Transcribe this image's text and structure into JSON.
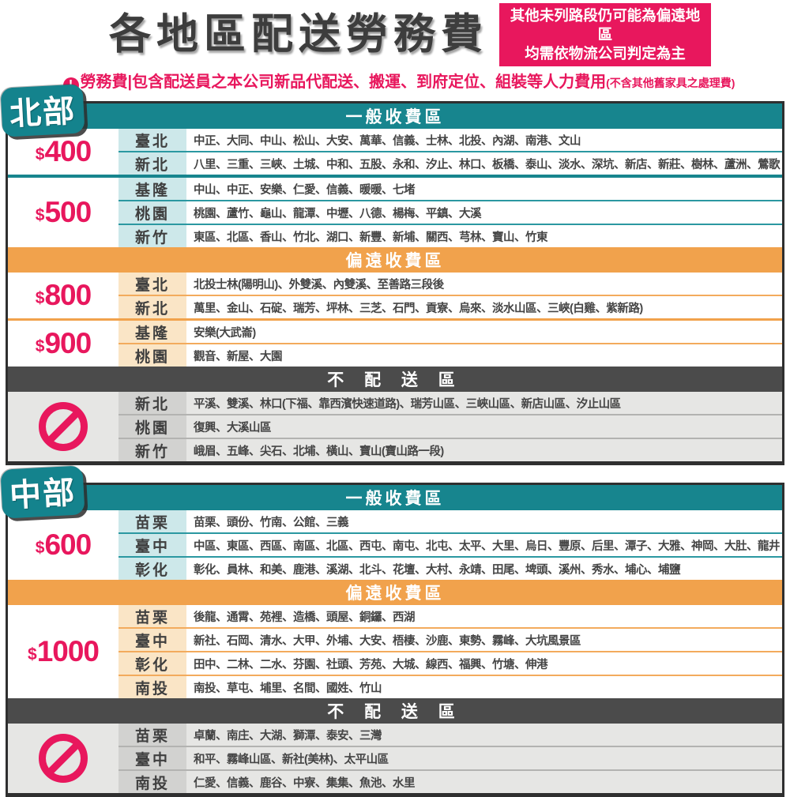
{
  "header": {
    "title": "各地區配送勞務費",
    "alert_symbol": "!",
    "notice": {
      "line1": "其他未列路段仍可能為偏遠地區",
      "line2": "均需依物流公司判定為主"
    },
    "disclaimer_main": "勞務費|包含配送員之本公司新品代配送、搬運、到府定位、組裝等人力費用",
    "disclaimer_note": "(不含其他舊家具之處理費)"
  },
  "colors": {
    "teal": "#17858e",
    "light_teal": "#cde8ea",
    "orange": "#f1a24c",
    "light_orange": "#fae5c6",
    "dark_gray_header": "#4b4b4b",
    "no_delivery_bg": "#e6e6e4",
    "crimson": "#e8175d",
    "title_gray": "#3d3d3d"
  },
  "regions": [
    {
      "name": "北部",
      "zones": [
        {
          "title": "一般收費區",
          "groups": [
            {
              "currency": "$",
              "amount": "400",
              "rows": [
                {
                  "city": "臺北",
                  "districts": "中正、大同、中山、松山、大安、萬華、信義、士林、北投、內湖、南港、文山"
                },
                {
                  "city": "新北",
                  "districts": "八里、三重、三峽、土城、中和、五股、永和、汐止、林口、板橋、泰山、淡水、深坑、新店、新莊、樹林、蘆洲、鶯歌"
                }
              ]
            },
            {
              "currency": "$",
              "amount": "500",
              "rows": [
                {
                  "city": "基隆",
                  "districts": "中山、中正、安樂、仁愛、信義、暖暖、七堵"
                },
                {
                  "city": "桃園",
                  "districts": "桃園、蘆竹、龜山、龍潭、中壢、八德、楊梅、平鎮、大溪"
                },
                {
                  "city": "新竹",
                  "districts": "東區、北區、香山、竹北、湖口、新豐、新埔、關西、芎林、寶山、竹東"
                }
              ]
            }
          ]
        },
        {
          "title": "偏遠收費區",
          "groups": [
            {
              "currency": "$",
              "amount": "800",
              "rows": [
                {
                  "city": "臺北",
                  "districts": "北投士林(陽明山)、外雙溪、內雙溪、至善路三段後"
                },
                {
                  "city": "新北",
                  "districts": "萬里、金山、石碇、瑞芳、坪林、三芝、石門、貢寮、烏來、淡水山區、三峽(白雞、紫新路)"
                }
              ]
            },
            {
              "currency": "$",
              "amount": "900",
              "rows": [
                {
                  "city": "基隆",
                  "districts": "安樂(大武崙)"
                },
                {
                  "city": "桃園",
                  "districts": "觀音、新屋、大園"
                }
              ]
            }
          ]
        },
        {
          "title": "不 配 送 區",
          "groups": [
            {
              "rows": [
                {
                  "city": "新北",
                  "districts": "平溪、雙溪、林口(下福、靠西濱快速道路)、瑞芳山區、三峽山區、新店山區、汐止山區"
                },
                {
                  "city": "桃園",
                  "districts": "復興、大溪山區"
                },
                {
                  "city": "新竹",
                  "districts": "峨眉、五峰、尖石、北埔、橫山、寶山(寶山路一段)"
                }
              ]
            }
          ]
        }
      ]
    },
    {
      "name": "中部",
      "zones": [
        {
          "title": "一般收費區",
          "groups": [
            {
              "currency": "$",
              "amount": "600",
              "rows": [
                {
                  "city": "苗栗",
                  "districts": "苗栗、頭份、竹南、公館、三義"
                },
                {
                  "city": "臺中",
                  "districts": "中區、東區、西區、南區、北區、西屯、南屯、北屯、太平、大里、烏日、豐原、后里、潭子、大雅、神岡、大肚、龍井"
                },
                {
                  "city": "彰化",
                  "districts": "彰化、員林、和美、鹿港、溪湖、北斗、花壇、大村、永靖、田尾、埤頭、溪州、秀水、埔心、埔鹽"
                }
              ]
            }
          ]
        },
        {
          "title": "偏遠收費區",
          "groups": [
            {
              "currency": "$",
              "amount": "1000",
              "rows": [
                {
                  "city": "苗栗",
                  "districts": "後龍、通霄、苑裡、造橋、頭屋、銅鑼、西湖"
                },
                {
                  "city": "臺中",
                  "districts": "新社、石岡、清水、大甲、外埔、大安、梧棲、沙鹿、東勢、霧峰、大坑風景區"
                },
                {
                  "city": "彰化",
                  "districts": "田中、二林、二水、芬園、社頭、芳苑、大城、線西、福興、竹塘、伸港"
                },
                {
                  "city": "南投",
                  "districts": "南投、草屯、埔里、名間、國姓、竹山"
                }
              ]
            }
          ]
        },
        {
          "title": "不 配 送 區",
          "groups": [
            {
              "rows": [
                {
                  "city": "苗栗",
                  "districts": "卓蘭、南庄、大湖、獅潭、泰安、三灣"
                },
                {
                  "city": "臺中",
                  "districts": "和平、霧峰山區、新社(美林)、太平山區"
                },
                {
                  "city": "南投",
                  "districts": "仁愛、信義、鹿谷、中寮、集集、魚池、水里"
                }
              ]
            }
          ]
        }
      ]
    }
  ]
}
